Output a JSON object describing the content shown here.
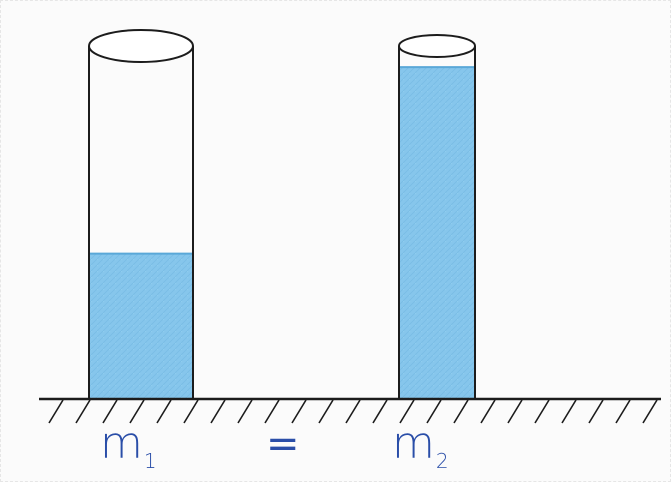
{
  "diagram": {
    "tube_left": {
      "fill_fraction": 0.41,
      "fill_color": "#7fc3ea"
    },
    "tube_right": {
      "fill_fraction": 0.94,
      "fill_color": "#7fc3ea"
    },
    "ink_color": "#1c1c1c",
    "label_color": "#2a4ea8"
  },
  "labels": {
    "m1_base": "m",
    "m1_sub": "1",
    "equals": "=",
    "m2_base": "m",
    "m2_sub": "2"
  }
}
